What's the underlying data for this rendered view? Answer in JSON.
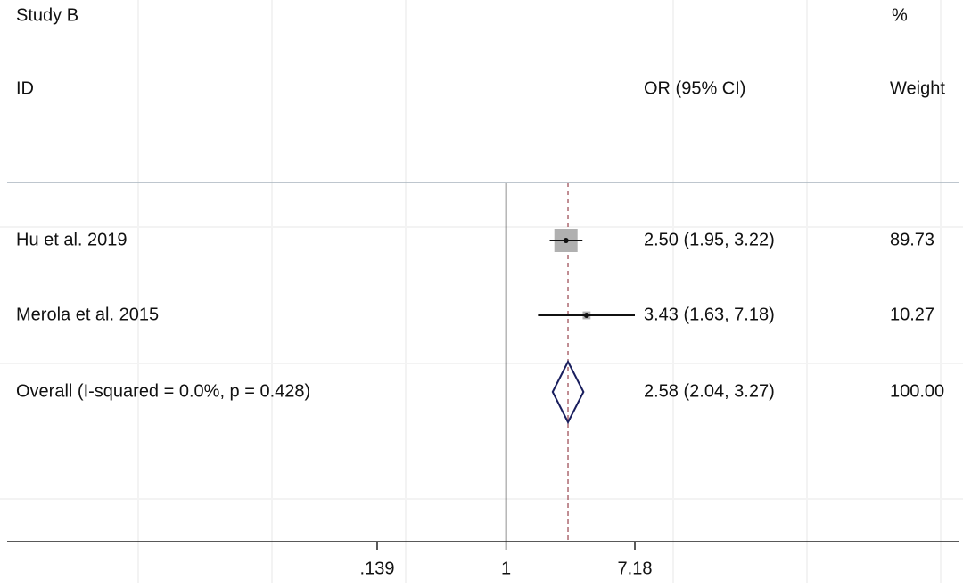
{
  "chart_data": {
    "type": "forest",
    "title": "Study B",
    "headers": {
      "id": "ID",
      "effect": "OR (95% CI)",
      "weight_top": "%",
      "weight": "Weight"
    },
    "log_scale": true,
    "xlim": [
      0.139,
      7.18
    ],
    "xticks": [
      {
        "value": 0.139,
        "label": ".139"
      },
      1,
      7.18
    ],
    "null_line": 1,
    "box_color": "#b0b0b0",
    "diamond_color": "#1a1f5e",
    "ref_line_color": "#a0525a",
    "studies": [
      {
        "name": "Hu et al. 2019",
        "values": [
          2.5,
          1.95,
          3.22
        ],
        "value_labels": "2.50 (1.95, 3.22)",
        "weight": 89.73
      },
      {
        "name": "Merola et al. 2015",
        "values": [
          3.43,
          1.63,
          7.18
        ],
        "value_labels": "3.43 (1.63, 7.18)",
        "weight": 10.27
      }
    ],
    "overall": {
      "name": "Overall  (I-squared = 0.0%, p = 0.428)",
      "values": [
        2.58,
        2.04,
        3.27
      ],
      "value_labels": "2.58 (2.04, 3.27)",
      "weight": {
        "value": 100,
        "label": "100.00"
      }
    }
  }
}
